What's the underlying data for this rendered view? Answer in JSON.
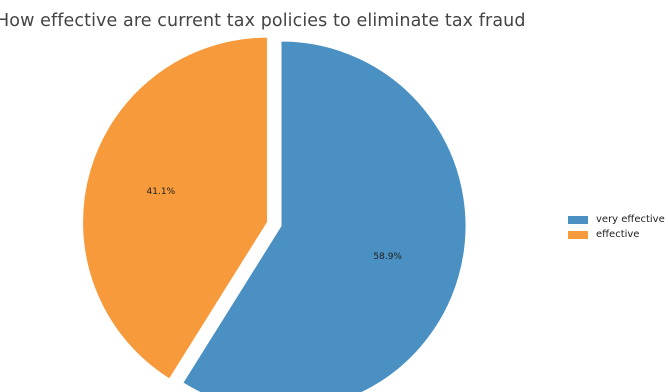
{
  "chart_data": {
    "type": "pie",
    "title": "How effective are current tax policies to eliminate tax fraud",
    "slices": [
      {
        "label": "very effective",
        "value": 58.9,
        "value_label": "58.9%",
        "color": "#4a90c2",
        "exploded": false
      },
      {
        "label": "effective",
        "value": 41.1,
        "value_label": "41.1%",
        "color": "#f79a3b",
        "exploded": true
      }
    ],
    "start_angle_deg": 90,
    "direction": "clockwise",
    "legend_position": "right"
  }
}
